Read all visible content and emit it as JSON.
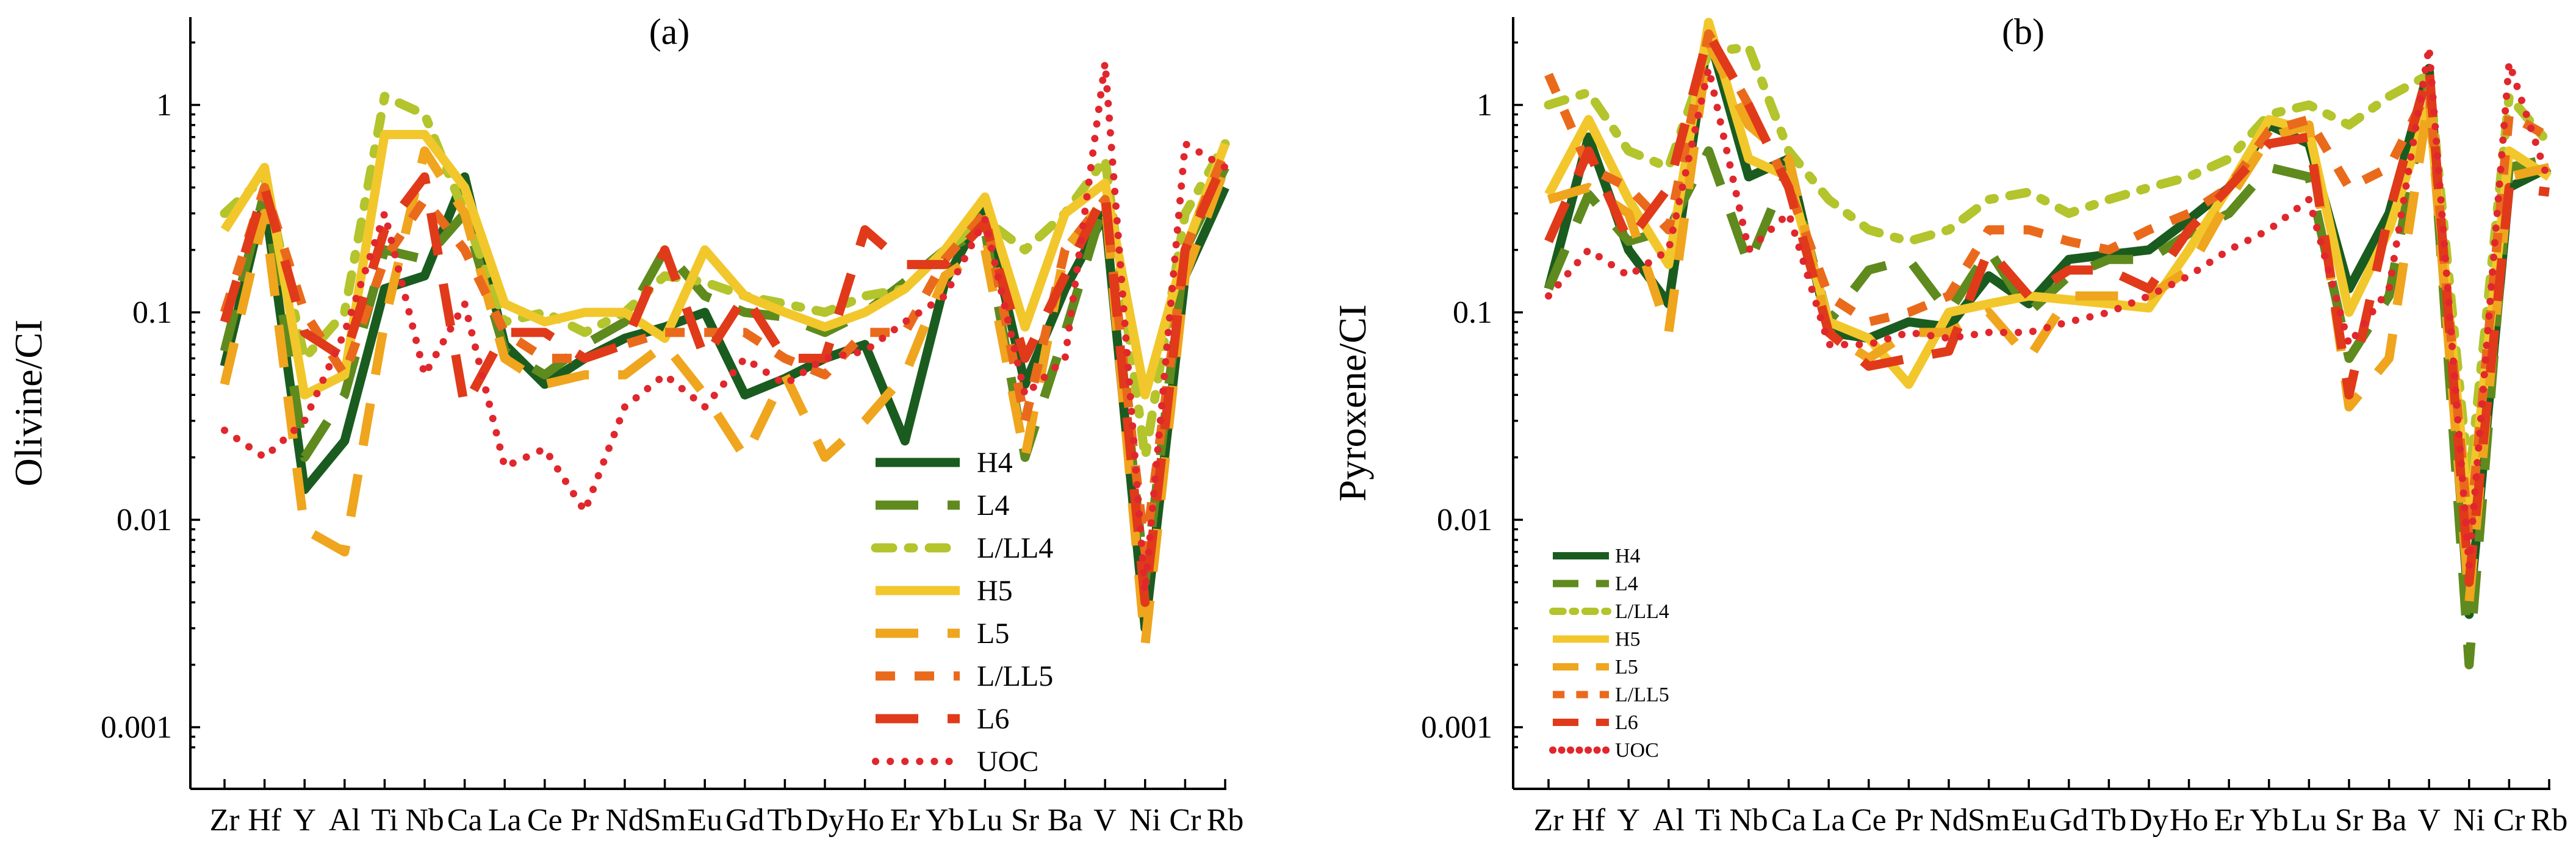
{
  "figure_labels": {
    "left": "(a)",
    "right": "(b)"
  },
  "chart_data": [
    {
      "type": "line",
      "title": "(a)",
      "ylabel": "Olivine/CI",
      "xlabel": "",
      "yscale": "log",
      "ylim": [
        0.0008,
        2.5
      ],
      "yticks": [
        1,
        0.1,
        0.01,
        0.001
      ],
      "ytick_labels": [
        "1",
        "0.1",
        "0.01",
        "0.001"
      ],
      "legend_position": "bottom-right",
      "categories": [
        "Zr",
        "Hf",
        "Y",
        "Al",
        "Ti",
        "Nb",
        "Ca",
        "La",
        "Ce",
        "Pr",
        "Nd",
        "Sm",
        "Eu",
        "Gd",
        "Tb",
        "Dy",
        "Ho",
        "Er",
        "Yb",
        "Lu",
        "Sr",
        "Ba",
        "V",
        "Ni",
        "Cr",
        "Rb"
      ],
      "series": [
        {
          "name": "H4",
          "values": [
            0.055,
            0.35,
            0.014,
            0.024,
            0.13,
            0.15,
            0.45,
            0.07,
            0.045,
            0.06,
            0.075,
            0.085,
            0.1,
            0.04,
            0.048,
            0.06,
            0.07,
            0.024,
            0.14,
            0.32,
            0.045,
            0.13,
            0.3,
            0.003,
            0.15,
            0.4
          ]
        },
        {
          "name": "L4",
          "values": [
            0.065,
            0.38,
            0.02,
            0.04,
            0.2,
            0.18,
            0.3,
            0.065,
            0.05,
            0.07,
            0.09,
            0.2,
            0.12,
            0.1,
            0.095,
            0.08,
            0.1,
            0.14,
            0.2,
            0.25,
            0.02,
            0.08,
            0.35,
            0.005,
            0.2,
            0.5
          ]
        },
        {
          "name": "L/LL4",
          "values": [
            0.3,
            0.45,
            0.06,
            0.1,
            1.1,
            0.9,
            0.3,
            0.09,
            0.1,
            0.08,
            0.1,
            0.15,
            0.14,
            0.12,
            0.11,
            0.1,
            0.12,
            0.13,
            0.2,
            0.28,
            0.2,
            0.3,
            0.55,
            0.02,
            0.3,
            0.65
          ]
        },
        {
          "name": "H5",
          "values": [
            0.25,
            0.5,
            0.04,
            0.05,
            0.72,
            0.72,
            0.4,
            0.11,
            0.09,
            0.1,
            0.1,
            0.075,
            0.2,
            0.12,
            0.1,
            0.085,
            0.1,
            0.13,
            0.2,
            0.36,
            0.085,
            0.3,
            0.42,
            0.04,
            0.2,
            0.65
          ]
        },
        {
          "name": "L5",
          "values": [
            0.045,
            0.3,
            0.009,
            0.007,
            0.09,
            0.6,
            0.3,
            0.06,
            0.045,
            0.05,
            0.05,
            0.07,
            0.04,
            0.02,
            0.05,
            0.02,
            0.03,
            0.05,
            0.15,
            0.2,
            0.02,
            0.2,
            0.35,
            0.0025,
            0.15,
            0.5
          ]
        },
        {
          "name": "L/LL5",
          "values": [
            0.1,
            0.4,
            0.1,
            0.05,
            0.18,
            0.35,
            0.2,
            0.08,
            0.06,
            0.06,
            0.07,
            0.08,
            0.08,
            0.08,
            0.06,
            0.05,
            0.08,
            0.08,
            0.18,
            0.3,
            0.03,
            0.2,
            0.35,
            0.007,
            0.2,
            0.6
          ]
        },
        {
          "name": "L6",
          "values": [
            0.09,
            0.4,
            0.08,
            0.06,
            0.25,
            0.45,
            0.035,
            0.08,
            0.08,
            0.06,
            0.07,
            0.2,
            0.06,
            0.12,
            0.06,
            0.06,
            0.25,
            0.17,
            0.17,
            0.27,
            0.06,
            0.15,
            0.38,
            0.004,
            0.2,
            0.55
          ]
        },
        {
          "name": "UOC",
          "values": [
            0.027,
            0.02,
            0.03,
            0.08,
            0.3,
            0.05,
            0.11,
            0.018,
            0.022,
            0.011,
            0.035,
            0.05,
            0.035,
            0.06,
            0.045,
            0.06,
            0.065,
            0.09,
            0.12,
            0.28,
            0.04,
            0.06,
            1.6,
            0.0045,
            0.65,
            0.5
          ]
        }
      ]
    },
    {
      "type": "line",
      "title": "(b)",
      "ylabel": "Pyroxene/CI",
      "xlabel": "",
      "yscale": "log",
      "ylim": [
        0.0008,
        2.5
      ],
      "yticks": [
        1,
        0.1,
        0.01,
        0.001
      ],
      "ytick_labels": [
        "1",
        "0.1",
        "0.01",
        "0.001"
      ],
      "legend_position": "bottom-left",
      "categories": [
        "Zr",
        "Hf",
        "Y",
        "Al",
        "Ti",
        "Nb",
        "Ca",
        "La",
        "Ce",
        "Pr",
        "Nd",
        "Sm",
        "Eu",
        "Gd",
        "Tb",
        "Dy",
        "Ho",
        "Er",
        "Yb",
        "Lu",
        "Sr",
        "Ba",
        "V",
        "Ni",
        "Cr",
        "Rb"
      ],
      "series": [
        {
          "name": "H4",
          "values": [
            0.13,
            0.7,
            0.2,
            0.11,
            2.2,
            0.45,
            0.55,
            0.08,
            0.075,
            0.09,
            0.085,
            0.15,
            0.11,
            0.18,
            0.19,
            0.2,
            0.28,
            0.4,
            0.8,
            0.65,
            0.13,
            0.3,
            1.5,
            0.0035,
            0.4,
            0.5
          ]
        },
        {
          "name": "L4",
          "values": [
            0.13,
            0.37,
            0.22,
            0.25,
            0.6,
            0.17,
            0.5,
            0.09,
            0.16,
            0.18,
            0.1,
            0.2,
            0.1,
            0.15,
            0.18,
            0.18,
            0.24,
            0.3,
            0.5,
            0.45,
            0.06,
            0.12,
            1.3,
            0.002,
            0.5,
            0.55
          ]
        },
        {
          "name": "L/LL4",
          "values": [
            1.0,
            1.15,
            0.6,
            0.5,
            1.8,
            1.9,
            0.6,
            0.35,
            0.25,
            0.22,
            0.25,
            0.35,
            0.38,
            0.3,
            0.35,
            0.4,
            0.45,
            0.55,
            0.9,
            1.0,
            0.8,
            1.1,
            1.4,
            0.015,
            1.1,
            0.65
          ]
        },
        {
          "name": "H5",
          "values": [
            0.37,
            0.85,
            0.35,
            0.17,
            2.5,
            0.55,
            0.45,
            0.09,
            0.075,
            0.045,
            0.1,
            0.11,
            0.12,
            0.115,
            0.11,
            0.105,
            0.2,
            0.4,
            0.85,
            0.75,
            0.1,
            0.25,
            1.0,
            0.01,
            0.6,
            0.45
          ]
        },
        {
          "name": "L5",
          "values": [
            0.35,
            0.4,
            0.3,
            0.08,
            2.0,
            0.8,
            0.55,
            0.08,
            0.06,
            0.08,
            0.08,
            0.1,
            0.06,
            0.12,
            0.12,
            0.12,
            0.16,
            0.35,
            0.7,
            0.8,
            0.035,
            0.06,
            1.1,
            0.004,
            0.45,
            0.5
          ]
        },
        {
          "name": "L/LL5",
          "values": [
            1.4,
            0.5,
            0.4,
            0.25,
            2.2,
            1.0,
            0.4,
            0.12,
            0.09,
            0.1,
            0.12,
            0.25,
            0.25,
            0.22,
            0.2,
            0.25,
            0.3,
            0.4,
            0.75,
            0.85,
            0.4,
            0.5,
            1.2,
            0.008,
            0.9,
            0.7
          ]
        },
        {
          "name": "L6",
          "values": [
            0.22,
            0.6,
            0.22,
            0.4,
            2.2,
            1.0,
            0.4,
            0.08,
            0.055,
            0.06,
            0.065,
            0.2,
            0.12,
            0.16,
            0.16,
            0.13,
            0.25,
            0.4,
            0.65,
            0.7,
            0.04,
            0.3,
            1.5,
            0.005,
            0.4,
            0.38
          ]
        },
        {
          "name": "UOC",
          "values": [
            0.12,
            0.2,
            0.15,
            0.2,
            1.5,
            0.2,
            0.3,
            0.07,
            0.07,
            0.08,
            0.075,
            0.08,
            0.08,
            0.09,
            0.1,
            0.12,
            0.15,
            0.2,
            0.25,
            0.35,
            0.07,
            0.13,
            1.9,
            0.006,
            1.6,
            0.42
          ]
        }
      ]
    }
  ],
  "series_colors": {
    "H4": "#1a5c1f",
    "L4": "#5f8a1e",
    "L/LL4": "#b3c42c",
    "H5": "#f2c72b",
    "L5": "#efa51d",
    "L/LL5": "#ea6a1c",
    "L6": "#e03a1a",
    "UOC": "#e0272d"
  },
  "series_styles": {
    "H4": "solid",
    "L4": "long-dash",
    "L/LL4": "dash-dot",
    "H5": "solid",
    "L5": "long-dash",
    "L/LL5": "dash",
    "L6": "long-dash",
    "UOC": "dotted"
  }
}
